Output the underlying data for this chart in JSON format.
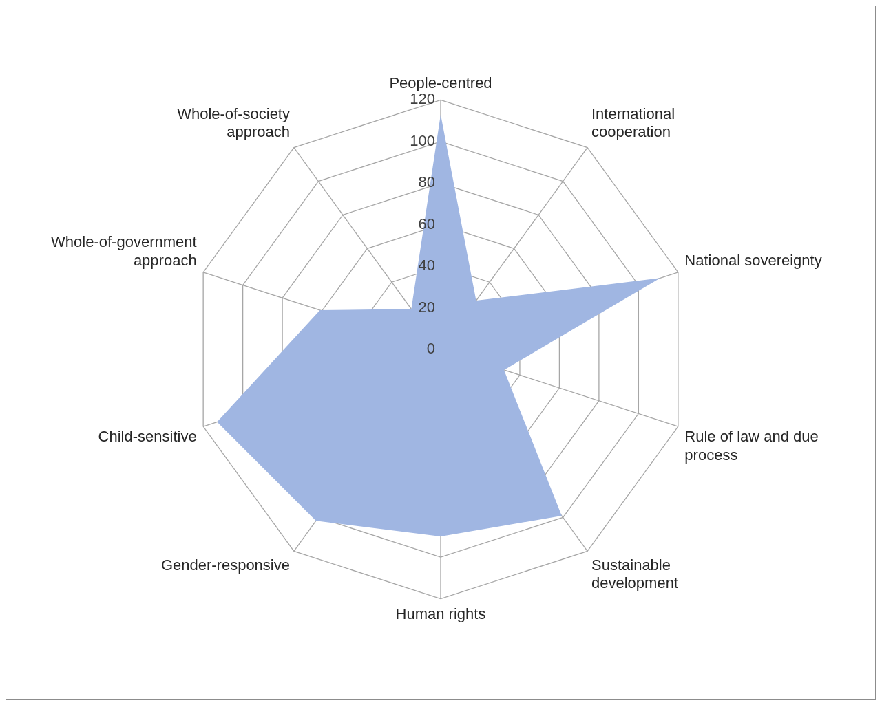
{
  "chart_data": {
    "type": "radar",
    "categories": [
      "People-centred",
      "International cooperation",
      "National sovereignty",
      "Rule of law and due process",
      "Sustainable development",
      "Human rights",
      "Gender-responsive",
      "Child-sensitive",
      "Whole-of-government approach",
      "Whole-of-society approach"
    ],
    "series": [
      {
        "color": "#a0b6e2",
        "values": [
          113,
          29,
          111,
          32,
          99,
          90,
          102,
          113,
          61,
          24
        ]
      }
    ],
    "ylim": [
      0,
      120
    ],
    "yticks": [
      0,
      20,
      40,
      60,
      80,
      100,
      120
    ],
    "grid": true,
    "legend": false
  }
}
